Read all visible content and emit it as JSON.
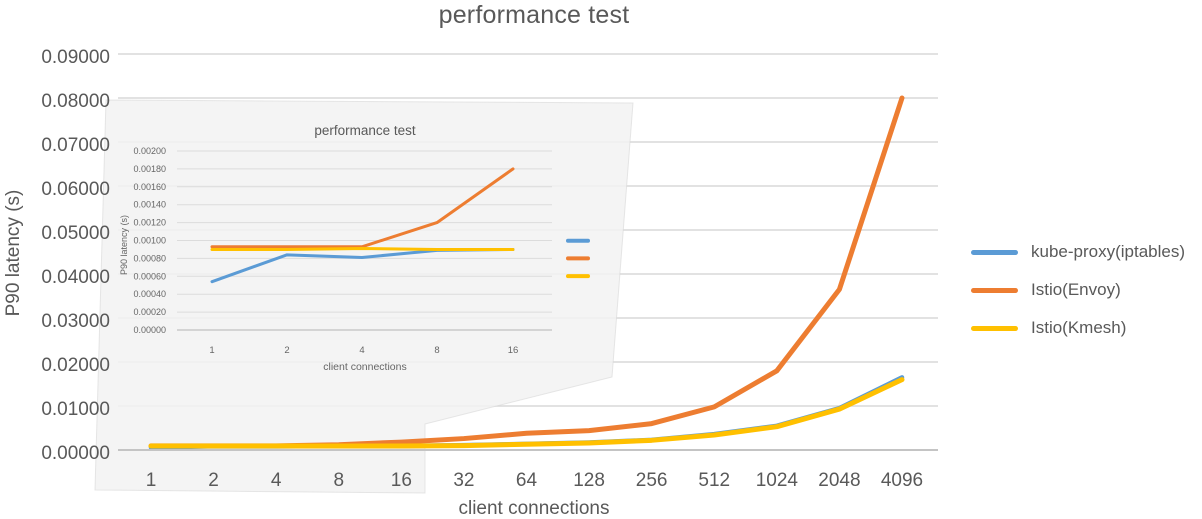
{
  "figure": {
    "background": "#ffffff",
    "text_color": "#595959",
    "grid_color": "#d9d9d9",
    "axis_color": "#c4c4c4",
    "callout_fill": "rgba(242,242,242,0.85)",
    "callout_edge": "rgba(215,215,215,0.6)"
  },
  "legend": {
    "items": [
      {
        "label": "kube-proxy(iptables)",
        "color": "#5B9BD5"
      },
      {
        "label": "Istio(Envoy)",
        "color": "#ED7D31"
      },
      {
        "label": "Istio(Kmesh)",
        "color": "#FFC000"
      }
    ]
  },
  "chart_data": [
    {
      "id": "main",
      "type": "line",
      "title": "performance test",
      "xlabel": "client connections",
      "ylabel": "P90 latency (s)",
      "categories": [
        "1",
        "2",
        "4",
        "8",
        "16",
        "32",
        "64",
        "128",
        "256",
        "512",
        "1024",
        "2048",
        "4096"
      ],
      "ylim": [
        0,
        0.09
      ],
      "ytick_step": 0.01,
      "ytick_labels": [
        "0.00000",
        "0.01000",
        "0.02000",
        "0.03000",
        "0.04000",
        "0.05000",
        "0.06000",
        "0.07000",
        "0.08000",
        "0.09000"
      ],
      "grid": true,
      "legend_position": "right",
      "series": [
        {
          "name": "kube-proxy(iptables)",
          "color": "#5B9BD5",
          "values": [
            0.00054,
            0.00084,
            0.00081,
            0.0009,
            0.0009,
            0.0011,
            0.0014,
            0.0017,
            0.0023,
            0.0036,
            0.0055,
            0.0095,
            0.0165
          ]
        },
        {
          "name": "Istio(Envoy)",
          "color": "#ED7D31",
          "values": [
            0.00093,
            0.00093,
            0.00093,
            0.0012,
            0.0018,
            0.0026,
            0.0038,
            0.0044,
            0.006,
            0.0098,
            0.018,
            0.0365,
            0.08
          ]
        },
        {
          "name": "Istio(Kmesh)",
          "color": "#FFC000",
          "values": [
            0.0009,
            0.0009,
            0.0009,
            0.0009,
            0.0009,
            0.001,
            0.0013,
            0.0016,
            0.0022,
            0.0034,
            0.0053,
            0.0093,
            0.016
          ]
        }
      ]
    },
    {
      "id": "inset",
      "type": "line",
      "title": "performance test",
      "xlabel": "client connections",
      "ylabel": "P90 latency (s)",
      "categories": [
        "1",
        "2",
        "4",
        "8",
        "16"
      ],
      "ylim": [
        0,
        0.002
      ],
      "ytick_step": 0.0002,
      "ytick_labels": [
        "0.00000",
        "0.00020",
        "0.00040",
        "0.00060",
        "0.00080",
        "0.00100",
        "0.00120",
        "0.00140",
        "0.00160",
        "0.00180",
        "0.00200"
      ],
      "grid": true,
      "legend_position": "right",
      "series": [
        {
          "name": "kube-proxy(iptables)",
          "color": "#5B9BD5",
          "values": [
            0.00054,
            0.00084,
            0.00081,
            0.00089,
            0.0009
          ]
        },
        {
          "name": "Istio(Envoy)",
          "color": "#ED7D31",
          "values": [
            0.00093,
            0.00093,
            0.00093,
            0.0012,
            0.0018
          ]
        },
        {
          "name": "Istio(Kmesh)",
          "color": "#FFC000",
          "values": [
            0.0009,
            0.0009,
            0.00091,
            0.0009,
            0.0009
          ]
        }
      ]
    }
  ]
}
